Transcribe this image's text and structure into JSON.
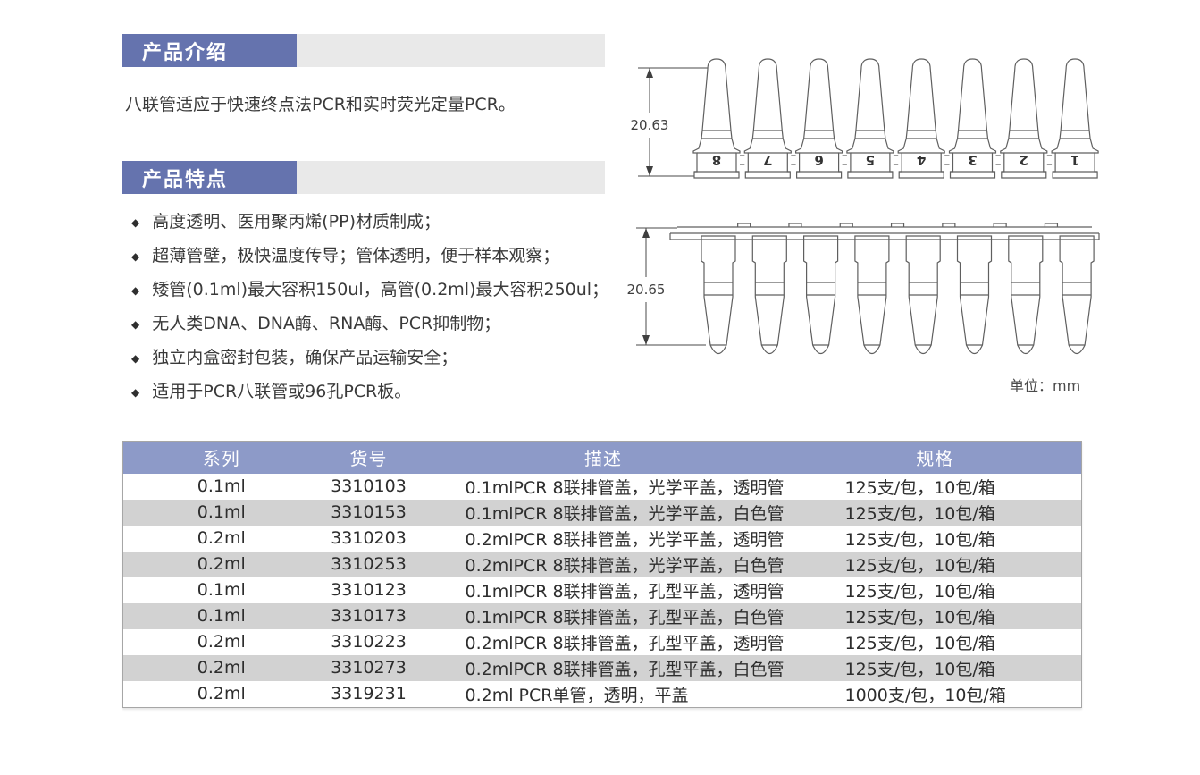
{
  "intro_section": {
    "title": "产品介绍",
    "body": "八联管适应于快速终点法PCR和实时荧光定量PCR。"
  },
  "features_section": {
    "title": "产品特点",
    "items": [
      "高度透明、医用聚丙烯(PP)材质制成；",
      "超薄管壁，极快温度传导；管体透明，便于样本观察；",
      "矮管(0.1ml)最大容积150ul，高管(0.2ml)最大容积250ul；",
      "无人类DNA、DNA酶、RNA酶、PCR抑制物；",
      "独立内盒密封包装，确保产品运输安全；",
      "适用于PCR八联管或96孔PCR板。"
    ]
  },
  "icons": {
    "diamond_bullet": "◆"
  },
  "diagram": {
    "top_view": {
      "dimension_label": "20.63",
      "cap_numbers": [
        "8",
        "7",
        "6",
        "5",
        "4",
        "3",
        "2",
        "1"
      ]
    },
    "side_view": {
      "dimension_label": "20.65",
      "tube_count": 8
    },
    "unit_label": "单位：mm"
  },
  "table": {
    "headers": [
      "系列",
      "货号",
      "描述",
      "规格"
    ],
    "rows": [
      [
        "0.1ml",
        "3310103",
        "0.1mlPCR 8联排管盖，光学平盖，透明管",
        "125支/包，10包/箱"
      ],
      [
        "0.1ml",
        "3310153",
        "0.1mlPCR 8联排管盖，光学平盖，白色管",
        "125支/包，10包/箱"
      ],
      [
        "0.2ml",
        "3310203",
        "0.2mlPCR 8联排管盖，光学平盖，透明管",
        "125支/包，10包/箱"
      ],
      [
        "0.2ml",
        "3310253",
        "0.2mlPCR 8联排管盖，光学平盖，白色管",
        "125支/包，10包/箱"
      ],
      [
        "0.1ml",
        "3310123",
        "0.1mlPCR 8联排管盖，孔型平盖，透明管",
        "125支/包，10包/箱"
      ],
      [
        "0.1ml",
        "3310173",
        "0.1mlPCR 8联排管盖，孔型平盖，白色管",
        "125支/包，10包/箱"
      ],
      [
        "0.2ml",
        "3310223",
        "0.2mlPCR 8联排管盖，孔型平盖，透明管",
        "125支/包，10包/箱"
      ],
      [
        "0.2ml",
        "3310273",
        "0.2mlPCR 8联排管盖，孔型平盖，白色管",
        "125支/包，10包/箱"
      ],
      [
        "0.2ml",
        "3319231",
        "0.2ml PCR单管，透明，平盖",
        "1000支/包，10包/箱"
      ]
    ]
  },
  "colors": {
    "accent": "#6573ae",
    "table_header_bg": "#8d9ac8",
    "section_band_bg": "#e9e9e9",
    "row_alt_bg": "#d2d2d2",
    "drawing_line": "#5f5f5f"
  }
}
